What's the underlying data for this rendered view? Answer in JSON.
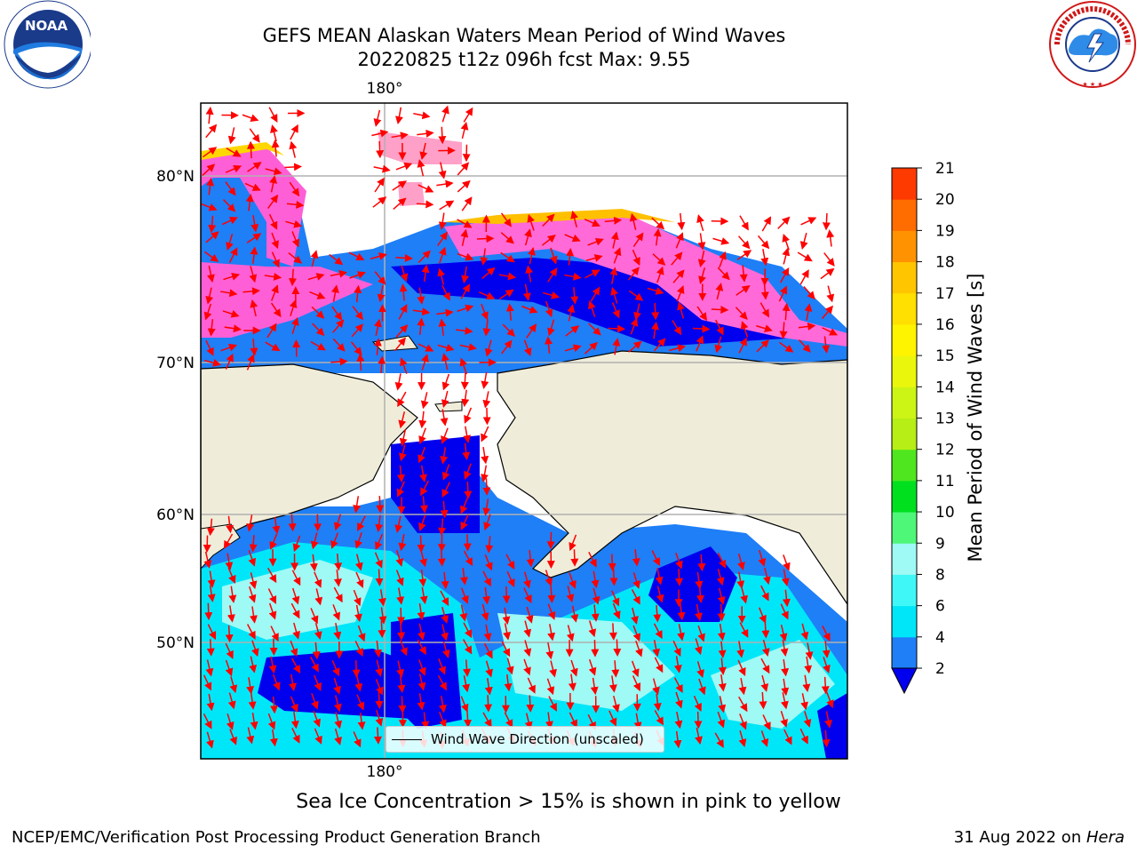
{
  "header": {
    "title_line1": "GEFS MEAN Alaskan Waters Mean Period of Wind Waves",
    "title_line2": "20220825 t12z 096h fcst   Max: 9.55"
  },
  "logos": {
    "left": {
      "name": "noaa-logo",
      "text": "NOAA"
    },
    "right": {
      "name": "nws-logo",
      "text": "NATIONAL WEATHER SERVICE"
    }
  },
  "map": {
    "lon_label_top": "180°",
    "lon_label_bottom": "180°",
    "lat_labels": [
      "80°N",
      "70°N",
      "60°N",
      "50°N"
    ],
    "legend_label": "Wind Wave Direction (unscaled)",
    "ocean_color": "#1e7ff7",
    "land_color": "#efedda",
    "arrow_color": "#ff0000"
  },
  "colorbar": {
    "label": "Mean Period of Wind Waves [s]",
    "ticks": [
      "2",
      "4",
      "6",
      "8",
      "9",
      "10",
      "11",
      "12",
      "13",
      "14",
      "15",
      "16",
      "17",
      "18",
      "19",
      "20",
      "21"
    ],
    "colors": [
      "#1e7ff7",
      "#00e6f9",
      "#3ff7f7",
      "#9ff9f4",
      "#4ff779",
      "#00e01f",
      "#4fe61f",
      "#b6ee15",
      "#ccf415",
      "#eaf70d",
      "#fff400",
      "#ffe000",
      "#ffc600",
      "#ff9200",
      "#ff6c00",
      "#ff3a00"
    ]
  },
  "footer": {
    "ice_note": "Sea Ice Concentration > 15% is shown in pink to yellow",
    "left": "NCEP/EMC/Verification Post Processing Product Generation Branch",
    "right_date": "31 Aug 2022 on ",
    "right_machine": "Hera"
  }
}
